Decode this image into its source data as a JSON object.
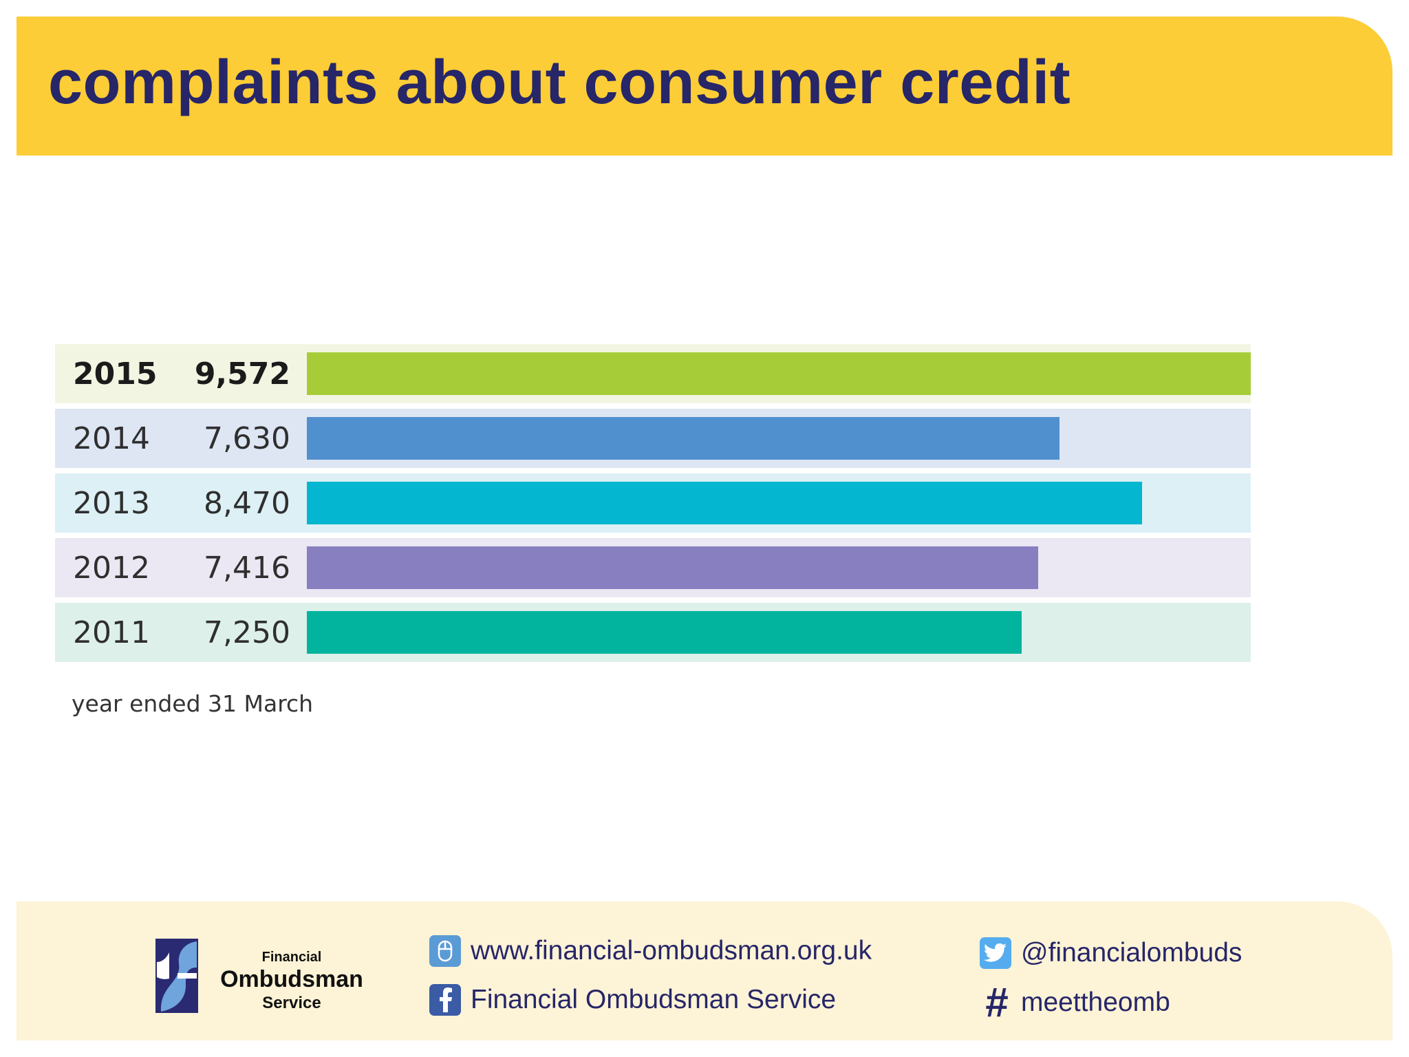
{
  "header": {
    "title": "complaints about consumer credit"
  },
  "chart_data": {
    "type": "bar",
    "orientation": "horizontal",
    "categories": [
      "2015",
      "2014",
      "2013",
      "2012",
      "2011"
    ],
    "values": [
      9572,
      7630,
      8470,
      7416,
      7250
    ],
    "value_labels": [
      "9,572",
      "7,630",
      "8,470",
      "7,416",
      "7,250"
    ],
    "bar_colors": [
      "#a6cd38",
      "#5090ce",
      "#04b6cf",
      "#877fc0",
      "#02b49d"
    ],
    "track_colors": [
      "#f3f5e3",
      "#dee6f4",
      "#dcf0f5",
      "#ebe7f3",
      "#ddf0ea"
    ],
    "highlight_index": 0,
    "xlim": [
      0,
      9572
    ],
    "footnote": "year ended 31 March",
    "title": "",
    "xlabel": "",
    "ylabel": ""
  },
  "footer": {
    "logo": {
      "line1": "Financial",
      "line2": "Ombudsman",
      "line3": "Service"
    },
    "website": "www.financial-ombudsman.org.uk",
    "facebook": "Financial Ombudsman Service",
    "twitter": "@financialombuds",
    "hashtag": "meettheomb"
  }
}
